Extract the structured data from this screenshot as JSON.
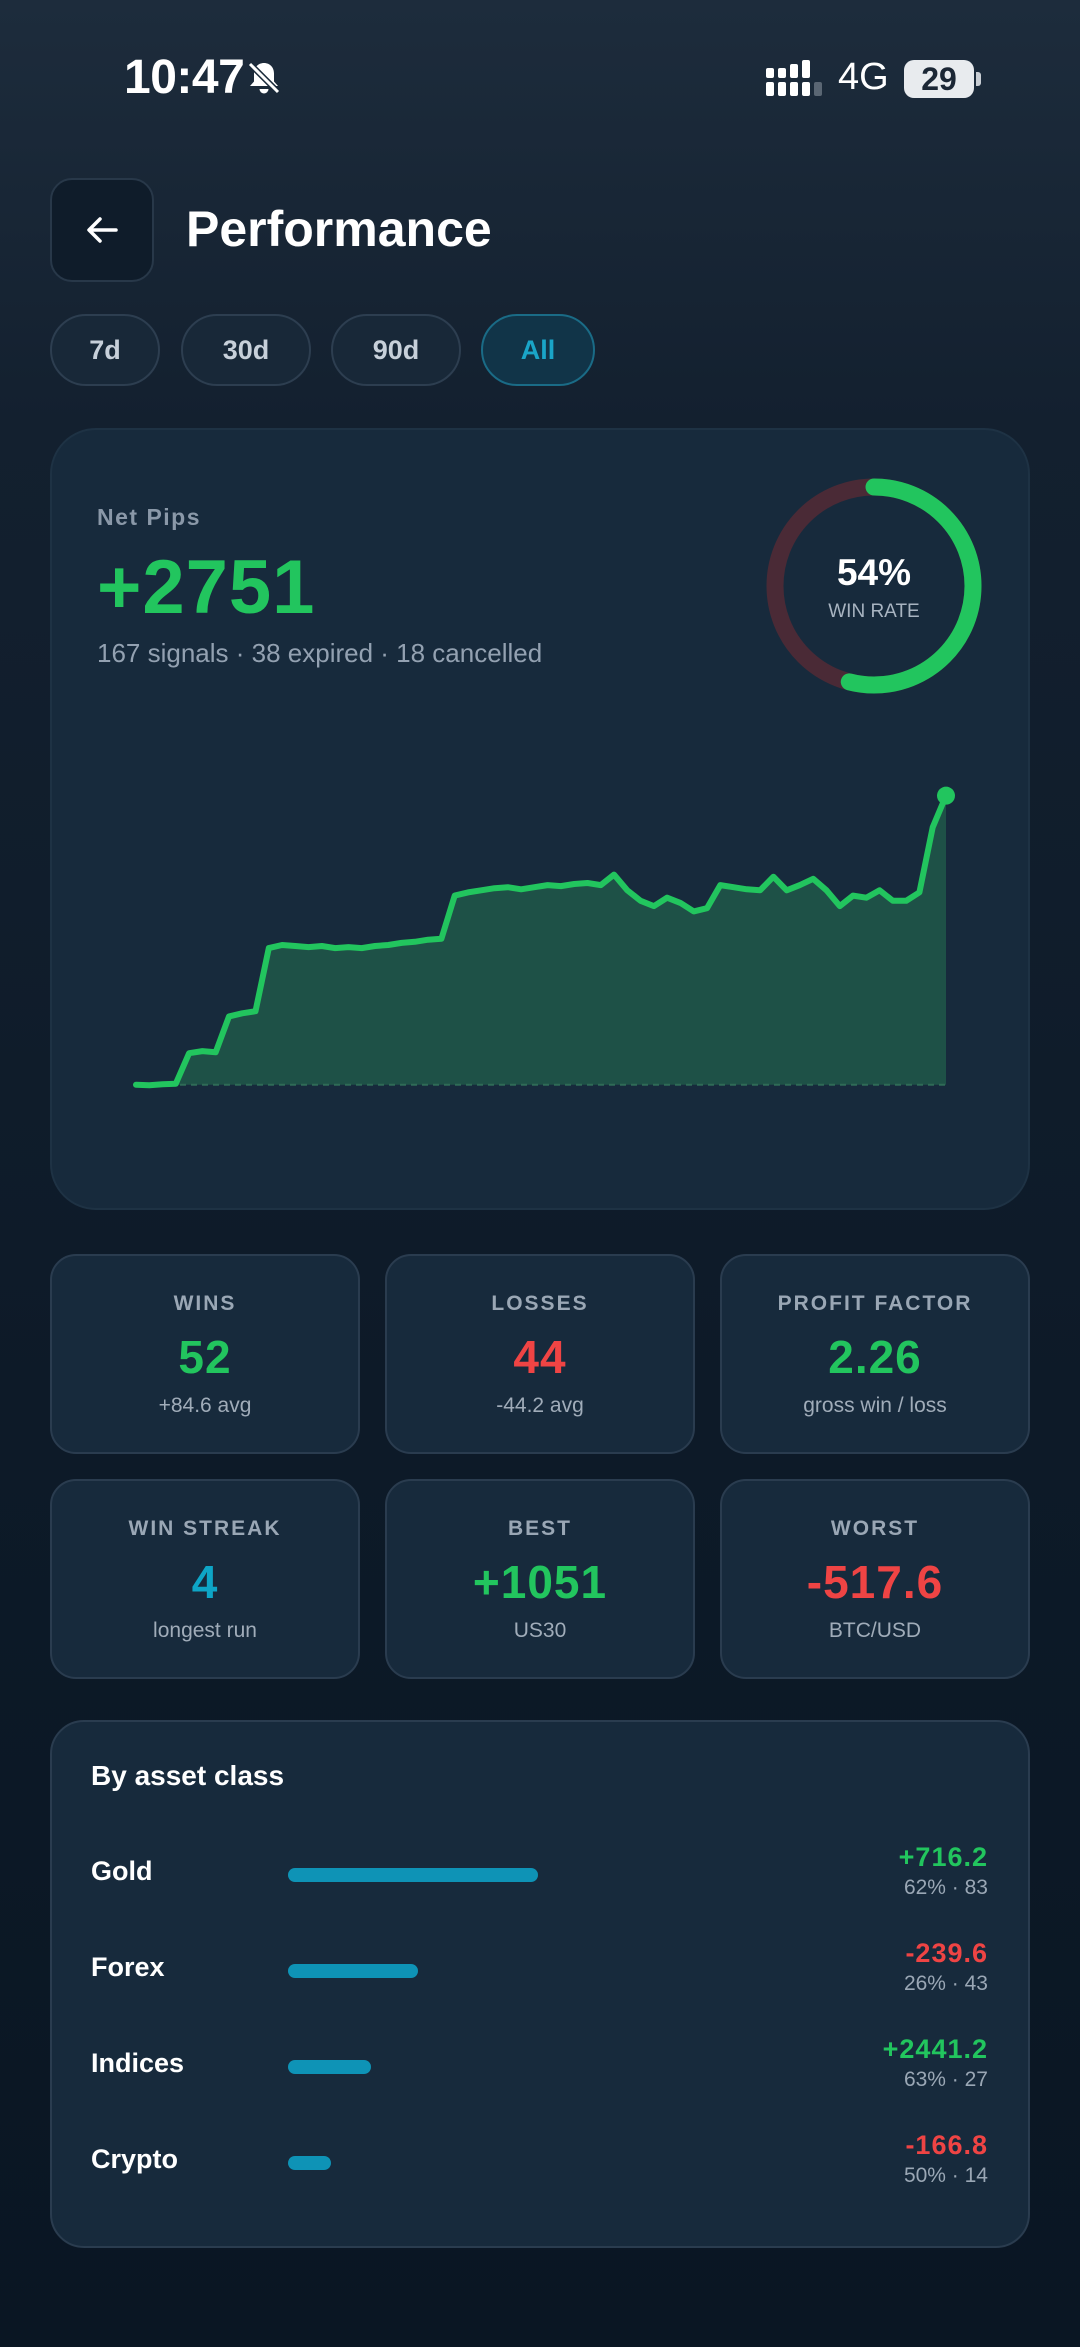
{
  "status_bar": {
    "time": "10:47",
    "network": "4G",
    "battery": "29"
  },
  "header": {
    "title": "Performance"
  },
  "periods": [
    {
      "label": "7d",
      "active": false
    },
    {
      "label": "30d",
      "active": false
    },
    {
      "label": "90d",
      "active": false
    },
    {
      "label": "All",
      "active": true
    }
  ],
  "summary": {
    "label": "Net Pips",
    "value": "+2751",
    "subtitle": "167 signals · 38 expired · 18 cancelled",
    "win_rate_pct": "54%",
    "win_rate_label": "WIN RATE",
    "win_rate_value": 54
  },
  "chart_data": {
    "type": "area",
    "xlabel": "",
    "ylabel": "",
    "y": [
      0,
      -5,
      5,
      10,
      300,
      320,
      310,
      650,
      680,
      700,
      1300,
      1330,
      1320,
      1310,
      1320,
      1300,
      1310,
      1300,
      1320,
      1330,
      1350,
      1360,
      1380,
      1390,
      1800,
      1830,
      1850,
      1870,
      1880,
      1860,
      1880,
      1900,
      1890,
      1910,
      1920,
      1900,
      2000,
      1850,
      1750,
      1700,
      1780,
      1730,
      1650,
      1680,
      1900,
      1880,
      1860,
      1850,
      1980,
      1850,
      1900,
      1960,
      1850,
      1700,
      1800,
      1780,
      1850,
      1750,
      1750,
      1830,
      2450,
      2751
    ],
    "fill": "#1e5147",
    "line": "#22c55e"
  },
  "stats": [
    {
      "label": "WINS",
      "value": "52",
      "sub": "+84.6 avg",
      "tone": "green"
    },
    {
      "label": "LOSSES",
      "value": "44",
      "sub": "-44.2 avg",
      "tone": "red"
    },
    {
      "label": "PROFIT FACTOR",
      "value": "2.26",
      "sub": "gross win / loss",
      "tone": "green"
    },
    {
      "label": "WIN STREAK",
      "value": "4",
      "sub": "longest run",
      "tone": "teal"
    },
    {
      "label": "BEST",
      "value": "+1051",
      "sub": "US30",
      "tone": "green"
    },
    {
      "label": "WORST",
      "value": "-517.6",
      "sub": "BTC/USD",
      "tone": "red"
    }
  ],
  "assets": {
    "title": "By asset class",
    "items": [
      {
        "name": "Gold",
        "value": "+716.2",
        "sub": "62% · 83",
        "tone": "green",
        "bar_fraction": 1.0
      },
      {
        "name": "Forex",
        "value": "-239.6",
        "sub": "26% · 43",
        "tone": "red",
        "bar_fraction": 0.52
      },
      {
        "name": "Indices",
        "value": "+2441.2",
        "sub": "63% · 27",
        "tone": "green",
        "bar_fraction": 0.33
      },
      {
        "name": "Crypto",
        "value": "-166.8",
        "sub": "50% · 14",
        "tone": "red",
        "bar_fraction": 0.17
      }
    ]
  },
  "colors": {
    "green": "#22c55e",
    "red": "#ef4444",
    "teal": "#0ea5c6",
    "card": "#172a3c"
  }
}
